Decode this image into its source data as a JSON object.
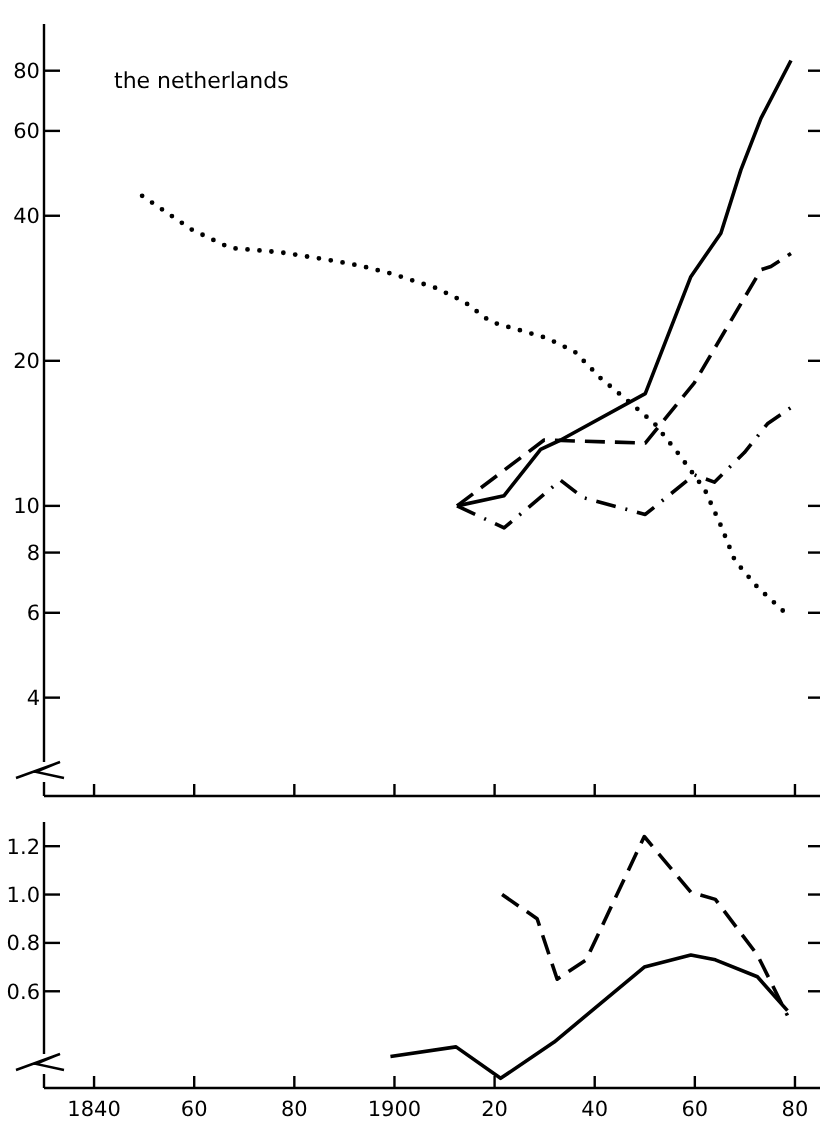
{
  "chart_data": [
    {
      "type": "line",
      "annotations": [
        "the netherlands"
      ],
      "log": true,
      "tick_labels": "y",
      "xlim": [
        1830,
        1985
      ],
      "ylim": [
        2.5,
        100
      ],
      "xticks": [
        {
          "value": 1840,
          "label": null
        },
        {
          "value": 1860,
          "label": null
        },
        {
          "value": 1880,
          "label": null
        },
        {
          "value": 1900,
          "label": null
        },
        {
          "value": 1920,
          "label": null
        },
        {
          "value": 1940,
          "label": null
        },
        {
          "value": 1960,
          "label": null
        },
        {
          "value": 1980,
          "label": null
        }
      ],
      "yticks": [
        4,
        6,
        8,
        10,
        20,
        40,
        60,
        80
      ],
      "series": [
        {
          "color": "#000000",
          "line_style": "dotted",
          "x": [
            1849.6,
            1853.2,
            1859.6,
            1867.2,
            1877.2,
            1886.8,
            1893.2,
            1899.6,
            1908.4,
            1914,
            1919.2,
            1926,
            1930.4,
            1936,
            1941.2,
            1946.4,
            1952,
            1956.8,
            1962,
            1965.2,
            1968,
            1972.4,
            1978.8
          ],
          "values": [
            44,
            41.5,
            37.4,
            34.3,
            33.6,
            32.4,
            31.5,
            30.3,
            28.3,
            26.5,
            24.1,
            23,
            22.3,
            20.9,
            18.4,
            16.6,
            14.8,
            12.8,
            10.8,
            9.1,
            7.7,
            6.8,
            5.9
          ]
        },
        {
          "color": "#000000",
          "line_style": "solid",
          "x": [
            1912.5,
            1921.9,
            1929.2,
            1933.2,
            1950.1,
            1959.2,
            1965.2,
            1969.2,
            1973.2,
            1979.2
          ],
          "values": [
            10,
            10.5,
            13.1,
            13.7,
            17.1,
            29.9,
            36.8,
            49.8,
            63.7,
            84
          ]
        },
        {
          "color": "#000000",
          "line_style": "dashed",
          "x": [
            1912.5,
            1929.9,
            1950.1,
            1959.9,
            1973.2,
            1975.2,
            1979.2
          ],
          "values": [
            10,
            13.7,
            13.5,
            18,
            30.9,
            31.4,
            33.4
          ]
        },
        {
          "color": "#000000",
          "line_style": "dashdot",
          "x": [
            1912.5,
            1921.9,
            1933.2,
            1937.7,
            1950.1,
            1959.9,
            1963.9,
            1969.9,
            1974.5,
            1979.2
          ],
          "values": [
            10,
            9,
            11.3,
            10.4,
            9.6,
            11.6,
            11.2,
            12.9,
            14.8,
            16
          ]
        }
      ]
    },
    {
      "type": "line",
      "xlim": [
        1830,
        1985
      ],
      "ylim": [
        0.2,
        1.3
      ],
      "xticks": [
        {
          "value": 1840,
          "label": "1840"
        },
        {
          "value": 1860,
          "label": "60"
        },
        {
          "value": 1880,
          "label": "80"
        },
        {
          "value": 1900,
          "label": "1900"
        },
        {
          "value": 1920,
          "label": "20"
        },
        {
          "value": 1940,
          "label": "40"
        },
        {
          "value": 1960,
          "label": "60"
        },
        {
          "value": 1980,
          "label": "80"
        }
      ],
      "yticks": [
        {
          "value": 0.6,
          "label": "0.6"
        },
        {
          "value": 0.8,
          "label": "0.8"
        },
        {
          "value": 1.0,
          "label": "1.0"
        },
        {
          "value": 1.2,
          "label": "1.2"
        }
      ],
      "series": [
        {
          "color": "#000000",
          "line_style": "dashed",
          "x": [
            1921.5,
            1928.5,
            1932.5,
            1938.3,
            1949.9,
            1959.2,
            1964.1,
            1972.5,
            1978.5
          ],
          "values": [
            1.0,
            0.9,
            0.65,
            0.73,
            1.24,
            1.01,
            0.98,
            0.75,
            0.5
          ]
        },
        {
          "color": "#000000",
          "line_style": "solid",
          "x": [
            1899.2,
            1912.3,
            1921.2,
            1931.9,
            1949.9,
            1959.2,
            1964.1,
            1972.5,
            1978.5
          ],
          "values": [
            0.33,
            0.37,
            0.24,
            0.39,
            0.7,
            0.75,
            0.73,
            0.66,
            0.52
          ]
        }
      ]
    }
  ]
}
